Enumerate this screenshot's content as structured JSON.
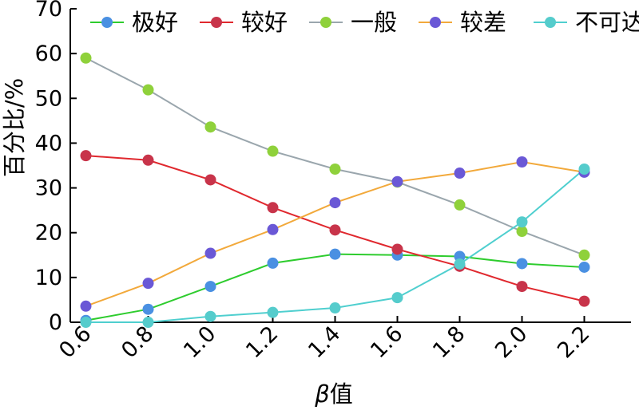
{
  "chart_data": {
    "type": "line",
    "title": "",
    "xlabel_symbol": "β",
    "xlabel_text": "值",
    "ylabel": "百分比/%",
    "x": [
      0.6,
      0.8,
      1.0,
      1.2,
      1.4,
      1.6,
      1.8,
      2.0,
      2.2
    ],
    "x_tick_labels": [
      "0.6",
      "0.8",
      "1.0",
      "1.2",
      "1.4",
      "1.6",
      "1.8",
      "2.0",
      "2.2"
    ],
    "y_ticks": [
      0,
      10,
      20,
      30,
      40,
      50,
      60,
      70
    ],
    "y_tick_labels": [
      "0",
      "10",
      "20",
      "30",
      "40",
      "50",
      "60",
      "70"
    ],
    "ylim": [
      0,
      70
    ],
    "xlim": [
      0.55,
      2.35
    ],
    "grid": false,
    "legend_position": "top",
    "series": [
      {
        "name": "极好",
        "line_color": "#2ecc2e",
        "marker_color": "#4a90e2",
        "values": [
          0.4,
          2.9,
          8.0,
          13.2,
          15.2,
          15.0,
          14.7,
          13.1,
          12.3
        ]
      },
      {
        "name": "较好",
        "line_color": "#e0282e",
        "marker_color": "#c8344a",
        "values": [
          37.2,
          36.2,
          31.8,
          25.6,
          20.6,
          16.3,
          12.5,
          8.0,
          4.7
        ]
      },
      {
        "name": "一般",
        "line_color": "#9aa6ad",
        "marker_color": "#8fd13b",
        "values": [
          59.0,
          51.9,
          43.6,
          38.2,
          34.2,
          31.3,
          26.2,
          20.3,
          15.0
        ]
      },
      {
        "name": "较差",
        "line_color": "#f2a93b",
        "marker_color": "#6a58d6",
        "values": [
          3.6,
          8.7,
          15.4,
          20.7,
          26.7,
          31.4,
          33.3,
          35.8,
          33.5
        ]
      },
      {
        "name": "不可达",
        "line_color": "#4fcfcf",
        "marker_color": "#55cccc",
        "values": [
          0.0,
          0.0,
          1.3,
          2.2,
          3.2,
          5.5,
          13.0,
          22.4,
          34.2
        ]
      }
    ]
  }
}
